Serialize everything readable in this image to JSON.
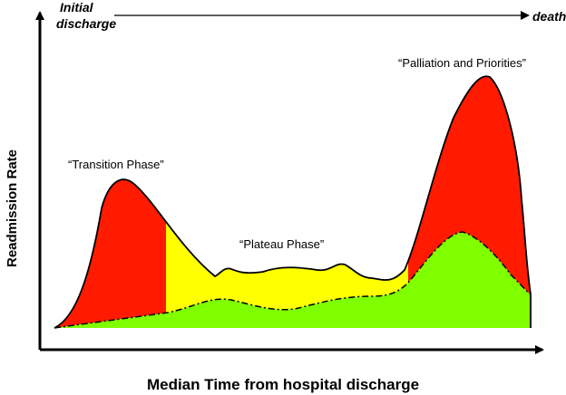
{
  "diagram": {
    "axes": {
      "x_label": "Median Time from hospital discharge",
      "y_label": "Readmission Rate"
    },
    "timeline": {
      "start_line1": "Initial",
      "start_line2": "discharge",
      "end": "death"
    },
    "phases": [
      {
        "label": "“Transition Phase”",
        "color": "#ff1a00"
      },
      {
        "label": "“Plateau Phase”",
        "color": "#ffff00"
      },
      {
        "label": "“Palliation and Priorities”",
        "color": "#ff1a00"
      }
    ],
    "baseline_area_color": "#80ff00"
  }
}
